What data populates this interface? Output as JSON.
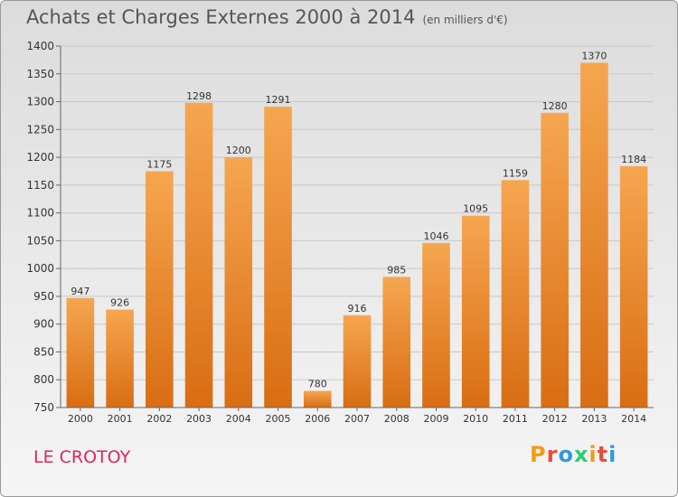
{
  "title": "Achats et Charges Externes 2000 à 2014",
  "subtitle": "(en milliers d'€)",
  "commune": "LE CROTOY",
  "logo": {
    "text": "Proxiti",
    "colors": [
      "#f39c12",
      "#e74c3c",
      "#3498db",
      "#2ecc71",
      "#f39c12",
      "#e74c3c",
      "#3498db"
    ]
  },
  "colors": {
    "bar_top": "#f6a650",
    "bar_bottom": "#d96d13",
    "commune": "#e0245e",
    "grid": "#c8c8c8"
  },
  "chart_data": {
    "type": "bar",
    "title": "Achats et Charges Externes 2000 à 2014",
    "xlabel": "",
    "ylabel": "",
    "categories": [
      "2000",
      "2001",
      "2002",
      "2003",
      "2004",
      "2005",
      "2006",
      "2007",
      "2008",
      "2009",
      "2010",
      "2011",
      "2012",
      "2013",
      "2014"
    ],
    "values": [
      947,
      926,
      1175,
      1298,
      1200,
      1291,
      780,
      916,
      985,
      1046,
      1095,
      1159,
      1280,
      1370,
      1184
    ],
    "ylim": [
      750,
      1400
    ],
    "yticks": [
      750,
      800,
      850,
      900,
      950,
      1000,
      1050,
      1100,
      1150,
      1200,
      1250,
      1300,
      1350,
      1400
    ],
    "grid": true
  }
}
